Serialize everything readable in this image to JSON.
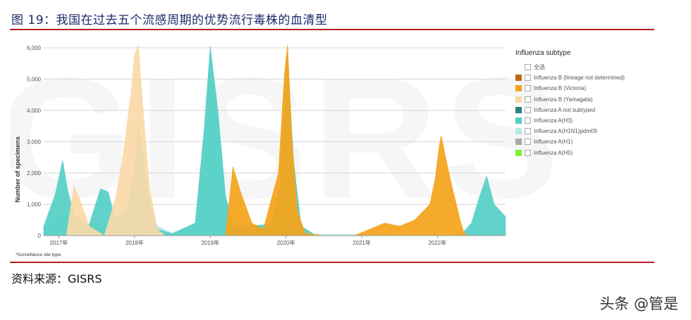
{
  "figure": {
    "title": "图 19：我国在过去五个流感周期的优势流行毒株的血清型",
    "source": "资料来源：GISRS",
    "watermark": "头条 @管是"
  },
  "chart_data": {
    "type": "area",
    "ylabel": "Number of specimens",
    "ylim": [
      0,
      6000
    ],
    "yticks": [
      "0",
      "1,000",
      "2,000",
      "3,000",
      "4,000",
      "5,000",
      "6,000"
    ],
    "ytick_values": [
      0,
      1000,
      2000,
      3000,
      4000,
      5000,
      6000
    ],
    "xlim": [
      2016.8,
      2022.9
    ],
    "xticks": [
      "2017年",
      "2018年",
      "2019年",
      "2020年",
      "2021年",
      "2022年"
    ],
    "xtick_values": [
      2017.0,
      2018.0,
      2019.0,
      2020.0,
      2021.0,
      2022.0
    ],
    "footnote": "*Surveillance site type:",
    "background_letters": "GISRS",
    "legend": {
      "title": "Influenza subtype",
      "select_all": "全选",
      "items": [
        {
          "name": "Influenza B (lineage not determined)",
          "color": "#c0651a"
        },
        {
          "name": "Influenza B (Victoria)",
          "color": "#f5a31a"
        },
        {
          "name": "Influenza B (Yamagata)",
          "color": "#fad9a8"
        },
        {
          "name": "Influenza A not subtyped",
          "color": "#2a7f7f"
        },
        {
          "name": "Influenza A(H3)",
          "color": "#55cfc5"
        },
        {
          "name": "Influenza A(H1N1)pdm09",
          "color": "#b3ece6"
        },
        {
          "name": "Influenza A(H1)",
          "color": "#a8a8a8"
        },
        {
          "name": "Influenza A(H5)",
          "color": "#7cf23a"
        }
      ]
    },
    "series": [
      {
        "name": "Influenza A(H1N1)pdm09",
        "color": "#b3ece6",
        "x": [
          2016.8,
          2017.0,
          2017.2,
          2017.35,
          2017.5,
          2017.6,
          2017.8,
          2017.9,
          2018.0,
          2018.05,
          2018.15,
          2018.3,
          2018.5,
          2018.8,
          2018.92,
          2019.0,
          2019.1,
          2019.2,
          2019.3,
          2019.5,
          2019.8,
          2019.92,
          2020.0,
          2020.1,
          2020.2,
          2022.9
        ],
        "y": [
          300,
          600,
          700,
          350,
          400,
          600,
          500,
          800,
          1400,
          1600,
          1500,
          300,
          80,
          400,
          3200,
          5600,
          3500,
          1200,
          400,
          150,
          300,
          800,
          1200,
          400,
          50,
          0
        ]
      },
      {
        "name": "Influenza A(H3)",
        "color": "#55cfc5",
        "x": [
          2016.8,
          2016.95,
          2017.05,
          2017.12,
          2017.2,
          2017.3,
          2017.4,
          2017.55,
          2017.65,
          2017.75,
          2017.9,
          2018.0,
          2018.05,
          2018.12,
          2018.2,
          2018.3,
          2018.5,
          2018.8,
          2018.92,
          2019.0,
          2019.1,
          2019.2,
          2019.3,
          2019.8,
          2019.92,
          2019.98,
          2020.02,
          2020.1,
          2020.2,
          2020.4,
          2022.0,
          2022.3,
          2022.45,
          2022.55,
          2022.65,
          2022.75,
          2022.9
        ],
        "y": [
          300,
          1300,
          2400,
          1400,
          700,
          400,
          350,
          1500,
          1400,
          500,
          900,
          2000,
          3500,
          2500,
          1000,
          200,
          60,
          400,
          3400,
          6050,
          4000,
          1300,
          300,
          350,
          1500,
          4500,
          5800,
          2400,
          300,
          0,
          0,
          0,
          400,
          1200,
          1900,
          1000,
          600
        ]
      },
      {
        "name": "Influenza B (Yamagata)",
        "color": "#fad9a8",
        "x": [
          2017.1,
          2017.2,
          2017.3,
          2017.4,
          2017.6,
          2017.75,
          2017.85,
          2017.95,
          2018.0,
          2018.05,
          2018.12,
          2018.2,
          2018.3,
          2018.4
        ],
        "y": [
          0,
          1600,
          1000,
          300,
          0,
          1200,
          2600,
          4500,
          5800,
          6100,
          3800,
          1500,
          200,
          0
        ]
      },
      {
        "name": "Influenza B (Victoria)",
        "color": "#f5a31a",
        "x": [
          2019.2,
          2019.3,
          2019.4,
          2019.55,
          2019.7,
          2019.9,
          2019.98,
          2020.02,
          2020.08,
          2020.15,
          2020.25,
          2020.5,
          2020.9,
          2021.1,
          2021.3,
          2021.5,
          2021.7,
          2021.9,
          2021.97,
          2022.02,
          2022.05,
          2022.1,
          2022.2,
          2022.3,
          2022.35,
          2022.4
        ],
        "y": [
          0,
          2200,
          1400,
          400,
          200,
          2000,
          5200,
          6100,
          3000,
          800,
          80,
          0,
          0,
          200,
          400,
          300,
          500,
          1000,
          1800,
          2800,
          3200,
          2600,
          1500,
          500,
          100,
          0
        ]
      }
    ]
  }
}
